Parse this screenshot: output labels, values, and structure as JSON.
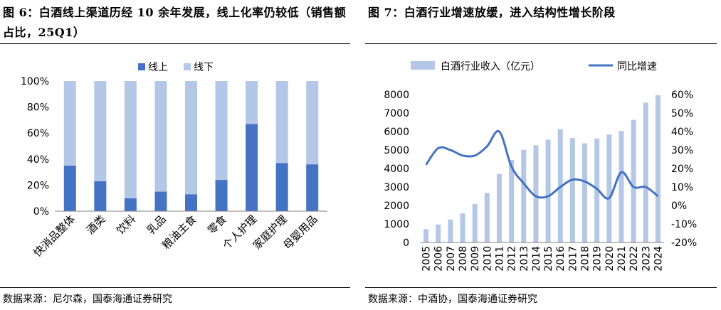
{
  "colors": {
    "online": "#4472C4",
    "offline": "#B4C7E7",
    "revenue_bar": "#B4C7E7",
    "growth_line": "#4472C4",
    "grid": "#D9D9D9",
    "axis": "#808080"
  },
  "left": {
    "figure_title": "图 6：白酒线上渠道历经 10 余年发展，线上化率仍较低（销售额占比，25Q1）",
    "source": "数据来源：尼尔森，国泰海通证券研究",
    "chart_data": {
      "type": "bar",
      "stacked": true,
      "categories": [
        "快消品整体",
        "酒类",
        "饮料",
        "乳品",
        "粮油主食",
        "零食",
        "个人护理",
        "家庭护理",
        "母婴用品"
      ],
      "series": [
        {
          "name": "线上",
          "values": [
            35,
            23,
            10,
            15,
            13,
            24,
            67,
            37,
            36
          ]
        },
        {
          "name": "线下",
          "values": [
            65,
            77,
            90,
            85,
            87,
            76,
            33,
            63,
            64
          ]
        }
      ],
      "y_ticks": [
        "0%",
        "20%",
        "40%",
        "60%",
        "80%",
        "100%"
      ],
      "ylim": [
        0,
        100
      ],
      "grid": false,
      "legend_position": "top-center"
    }
  },
  "right": {
    "figure_title": "图 7：白酒行业增速放缓，进入结构性增长阶段",
    "source": "数据来源：中酒协，国泰海通证券研究",
    "chart_data": {
      "type": "bar+line",
      "x": [
        "2005",
        "2006",
        "2007",
        "2008",
        "2009",
        "2010",
        "2011",
        "2012",
        "2013",
        "2014",
        "2015",
        "2016",
        "2017",
        "2018",
        "2019",
        "2020",
        "2021",
        "2022",
        "2023",
        "2024"
      ],
      "series": [
        {
          "name": "白酒行业收入（亿元）",
          "type": "bar",
          "axis": "left",
          "values": [
            720,
            970,
            1240,
            1570,
            2080,
            2680,
            3700,
            4460,
            5010,
            5260,
            5560,
            6130,
            5650,
            5360,
            5620,
            5840,
            6030,
            6630,
            7560,
            7960
          ]
        },
        {
          "name": "同比增速",
          "type": "line",
          "axis": "right",
          "values": [
            22,
            31,
            30,
            27,
            27,
            32,
            40,
            21,
            12,
            5,
            5,
            10,
            14,
            13,
            9,
            4,
            18,
            10,
            10,
            5
          ]
        }
      ],
      "y_left_ticks": [
        "0",
        "1000",
        "2000",
        "3000",
        "4000",
        "5000",
        "6000",
        "7000",
        "8000"
      ],
      "y_left_lim": [
        0,
        8000
      ],
      "y_right_ticks": [
        "-20%",
        "-10%",
        "0%",
        "10%",
        "20%",
        "30%",
        "40%",
        "50%",
        "60%"
      ],
      "y_right_lim": [
        -20,
        60
      ],
      "grid": false,
      "legend_position": "top-center"
    }
  }
}
